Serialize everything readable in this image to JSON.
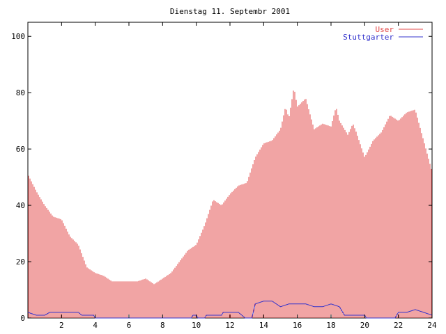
{
  "chart_data": {
    "type": "bar",
    "title": "Dienstag 11. Septembr 2001",
    "xlabel": "",
    "ylabel": "",
    "xlim": [
      0,
      24
    ],
    "ylim": [
      0,
      105
    ],
    "x_ticks": [
      "2",
      "4",
      "6",
      "8",
      "10",
      "12",
      "14",
      "16",
      "18",
      "20",
      "22",
      "24"
    ],
    "y_ticks": [
      "0",
      "20",
      "40",
      "60",
      "80",
      "100"
    ],
    "grid": false,
    "legend_position": "top-right",
    "series": [
      {
        "name": "User",
        "color": "#e34a4a",
        "style": "impulses",
        "points": [
          [
            0.0,
            51
          ],
          [
            0.5,
            45
          ],
          [
            1.0,
            40
          ],
          [
            1.5,
            36
          ],
          [
            2.0,
            35
          ],
          [
            2.5,
            29
          ],
          [
            3.0,
            26
          ],
          [
            3.5,
            18
          ],
          [
            4.0,
            16
          ],
          [
            4.5,
            15
          ],
          [
            5.0,
            13
          ],
          [
            5.5,
            13
          ],
          [
            6.0,
            13
          ],
          [
            6.5,
            13
          ],
          [
            7.0,
            14
          ],
          [
            7.5,
            12
          ],
          [
            8.0,
            14
          ],
          [
            8.5,
            16
          ],
          [
            9.0,
            20
          ],
          [
            9.5,
            24
          ],
          [
            10.0,
            26
          ],
          [
            10.5,
            33
          ],
          [
            11.0,
            42
          ],
          [
            11.5,
            40
          ],
          [
            12.0,
            44
          ],
          [
            12.5,
            47
          ],
          [
            13.0,
            48
          ],
          [
            13.5,
            57
          ],
          [
            14.0,
            62
          ],
          [
            14.5,
            63
          ],
          [
            15.0,
            67
          ],
          [
            15.3,
            75
          ],
          [
            15.5,
            71
          ],
          [
            15.8,
            82
          ],
          [
            16.0,
            75
          ],
          [
            16.5,
            78
          ],
          [
            17.0,
            67
          ],
          [
            17.5,
            69
          ],
          [
            18.0,
            68
          ],
          [
            18.3,
            75
          ],
          [
            18.5,
            70
          ],
          [
            19.0,
            65
          ],
          [
            19.3,
            69
          ],
          [
            19.5,
            66
          ],
          [
            20.0,
            57
          ],
          [
            20.5,
            63
          ],
          [
            21.0,
            66
          ],
          [
            21.5,
            72
          ],
          [
            22.0,
            70
          ],
          [
            22.5,
            73
          ],
          [
            23.0,
            74
          ],
          [
            23.5,
            63
          ],
          [
            24.0,
            52
          ]
        ]
      },
      {
        "name": "Stuttgarter",
        "color": "#3333cc",
        "style": "line",
        "points": [
          [
            0.0,
            2
          ],
          [
            0.5,
            1
          ],
          [
            1.0,
            1
          ],
          [
            1.3,
            2
          ],
          [
            2.0,
            2
          ],
          [
            2.5,
            2
          ],
          [
            3.0,
            2
          ],
          [
            3.2,
            1
          ],
          [
            3.9,
            1
          ],
          [
            4.0,
            0
          ],
          [
            9.7,
            0
          ],
          [
            9.8,
            1
          ],
          [
            10.0,
            1
          ],
          [
            10.1,
            0
          ],
          [
            10.5,
            0
          ],
          [
            10.6,
            1
          ],
          [
            11.5,
            1
          ],
          [
            11.6,
            2
          ],
          [
            12.0,
            2
          ],
          [
            12.5,
            2
          ],
          [
            12.9,
            0
          ],
          [
            13.3,
            0
          ],
          [
            13.5,
            5
          ],
          [
            14.0,
            6
          ],
          [
            14.5,
            6
          ],
          [
            15.0,
            4
          ],
          [
            15.5,
            5
          ],
          [
            16.0,
            5
          ],
          [
            16.5,
            5
          ],
          [
            17.0,
            4
          ],
          [
            17.5,
            4
          ],
          [
            18.0,
            5
          ],
          [
            18.5,
            4
          ],
          [
            18.8,
            1
          ],
          [
            20.0,
            1
          ],
          [
            20.1,
            0
          ],
          [
            20.9,
            0
          ],
          [
            21.0,
            0
          ],
          [
            21.8,
            0
          ],
          [
            22.0,
            2
          ],
          [
            22.5,
            2
          ],
          [
            23.0,
            3
          ],
          [
            23.5,
            2
          ],
          [
            24.0,
            1
          ]
        ]
      }
    ]
  }
}
